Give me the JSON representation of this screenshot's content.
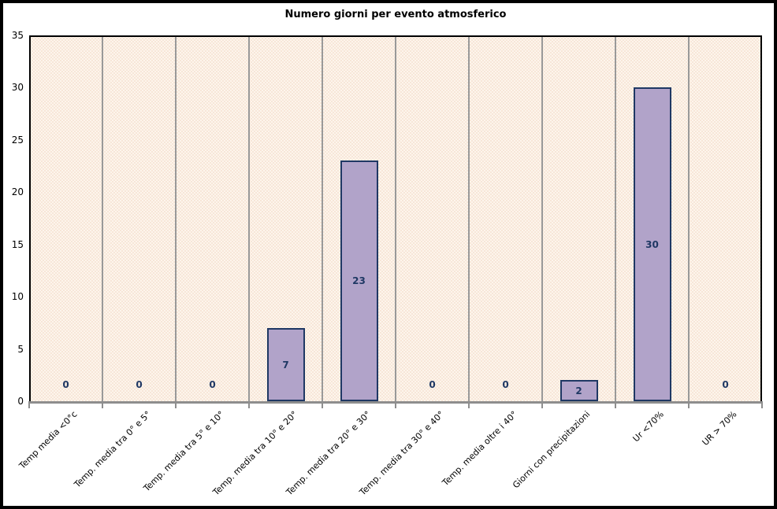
{
  "chart_data": {
    "type": "bar",
    "title": "Numero giorni per evento atmosferico",
    "categories": [
      "Temp media <0°c",
      "Temp. media tra 0° e 5°",
      "Temp. media tra 5° e 10°",
      "Temp. media tra 10° e 20°",
      "Temp. media tra 20° e 30°",
      "Temp. media tra 30° e 40°",
      "Temp. media oltre i 40°",
      "Giorni con precipitazioni",
      "Ur <70%",
      "UR > 70%"
    ],
    "values": [
      0,
      0,
      0,
      7,
      23,
      0,
      0,
      2,
      30,
      0
    ],
    "xlabel": "",
    "ylabel": "",
    "ylim": [
      0,
      35
    ],
    "yticks": [
      0,
      5,
      10,
      15,
      20,
      25,
      30,
      35
    ],
    "grid": "vertical category separators only",
    "legend": "none",
    "value_labels": "shown inside bars, zero values shown above axis",
    "colors": {
      "bar_fill": "#B1A3C9",
      "bar_border": "#1F3864",
      "value_label": "#1F3864",
      "plot_bg": "#FDF5EC",
      "plot_bg_dot": "#F5E1D2",
      "axis_gray": "#8E8E8E",
      "separator": "#999999",
      "plot_border": "#000000",
      "title_color": "#000000"
    }
  }
}
